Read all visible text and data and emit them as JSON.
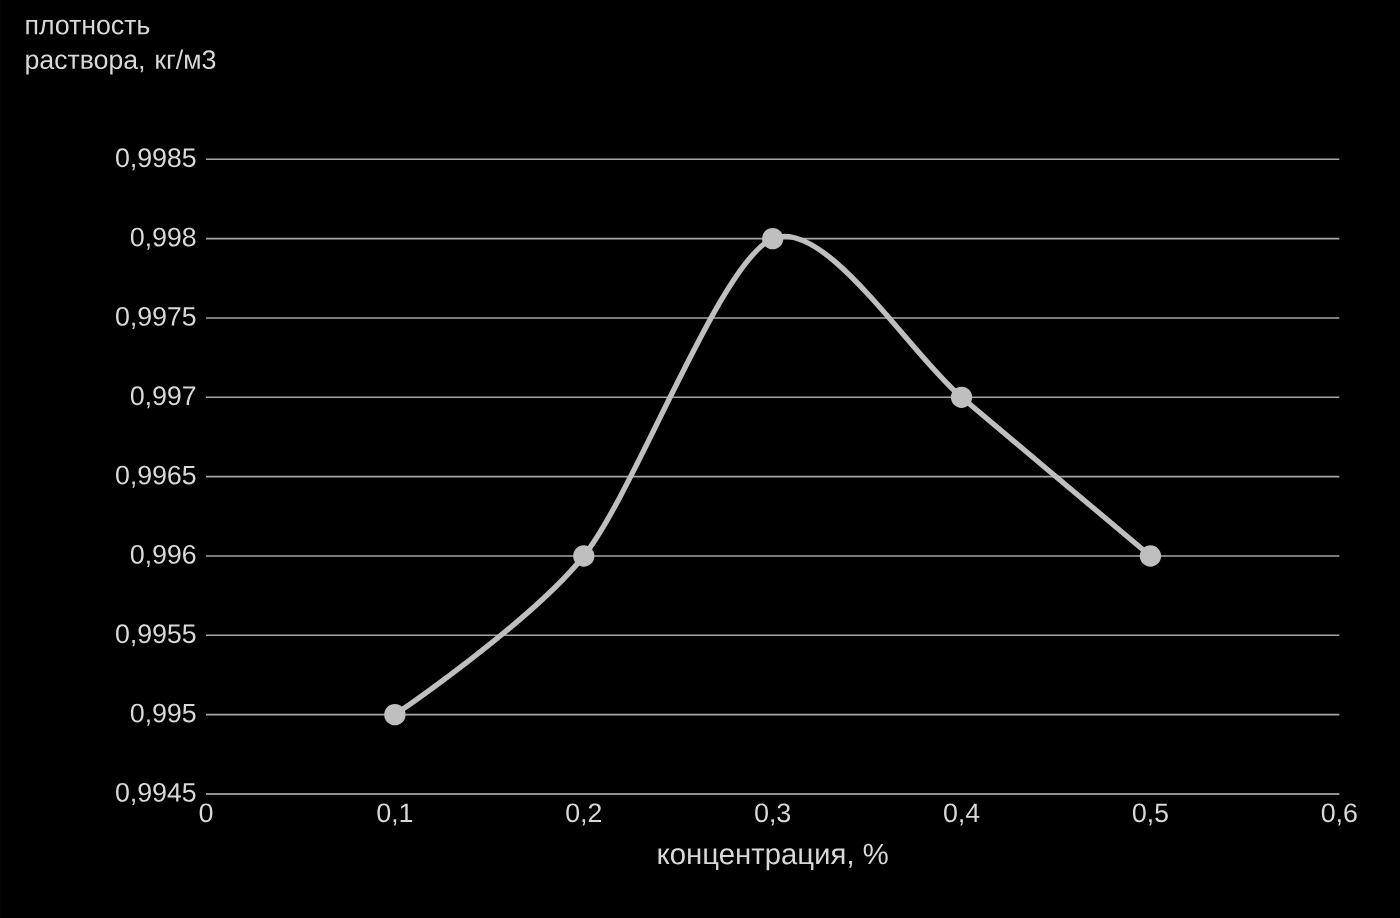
{
  "chart_data": {
    "type": "line",
    "xlabel": "концентрация, %",
    "ylabel": "плотность раствора, кг/м3",
    "x": [
      0.1,
      0.2,
      0.3,
      0.4,
      0.5
    ],
    "series": [
      {
        "color": "#bfbfbf",
        "values": [
          0.995,
          0.996,
          0.998,
          0.997,
          0.996
        ]
      }
    ],
    "xlim": [
      0,
      0.6
    ],
    "xticks": [
      0,
      {
        "value": 0.1,
        "label": "0,1"
      },
      {
        "value": 0.2,
        "label": "0,2"
      },
      {
        "value": 0.3,
        "label": "0,3"
      },
      {
        "value": 0.4,
        "label": "0,4"
      },
      {
        "value": 0.5,
        "label": "0,5"
      },
      {
        "value": 0.6,
        "label": "0,6"
      }
    ],
    "ylim": [
      0.9945,
      0.9985
    ],
    "yticks": [
      {
        "value": 0.9945,
        "label": "0,9945"
      },
      {
        "value": 0.995,
        "label": "0,995"
      },
      {
        "value": 0.9955,
        "label": "0,9955"
      },
      {
        "value": 0.996,
        "label": "0,996"
      },
      {
        "value": 0.9965,
        "label": "0,9965"
      },
      {
        "value": 0.997,
        "label": "0,997"
      },
      {
        "value": 0.9975,
        "label": "0,9975"
      },
      {
        "value": 0.998,
        "label": "0,998"
      },
      {
        "value": 0.9985,
        "label": "0,9985"
      }
    ],
    "grid": "y",
    "marker": "circle",
    "line_style": "solid"
  }
}
